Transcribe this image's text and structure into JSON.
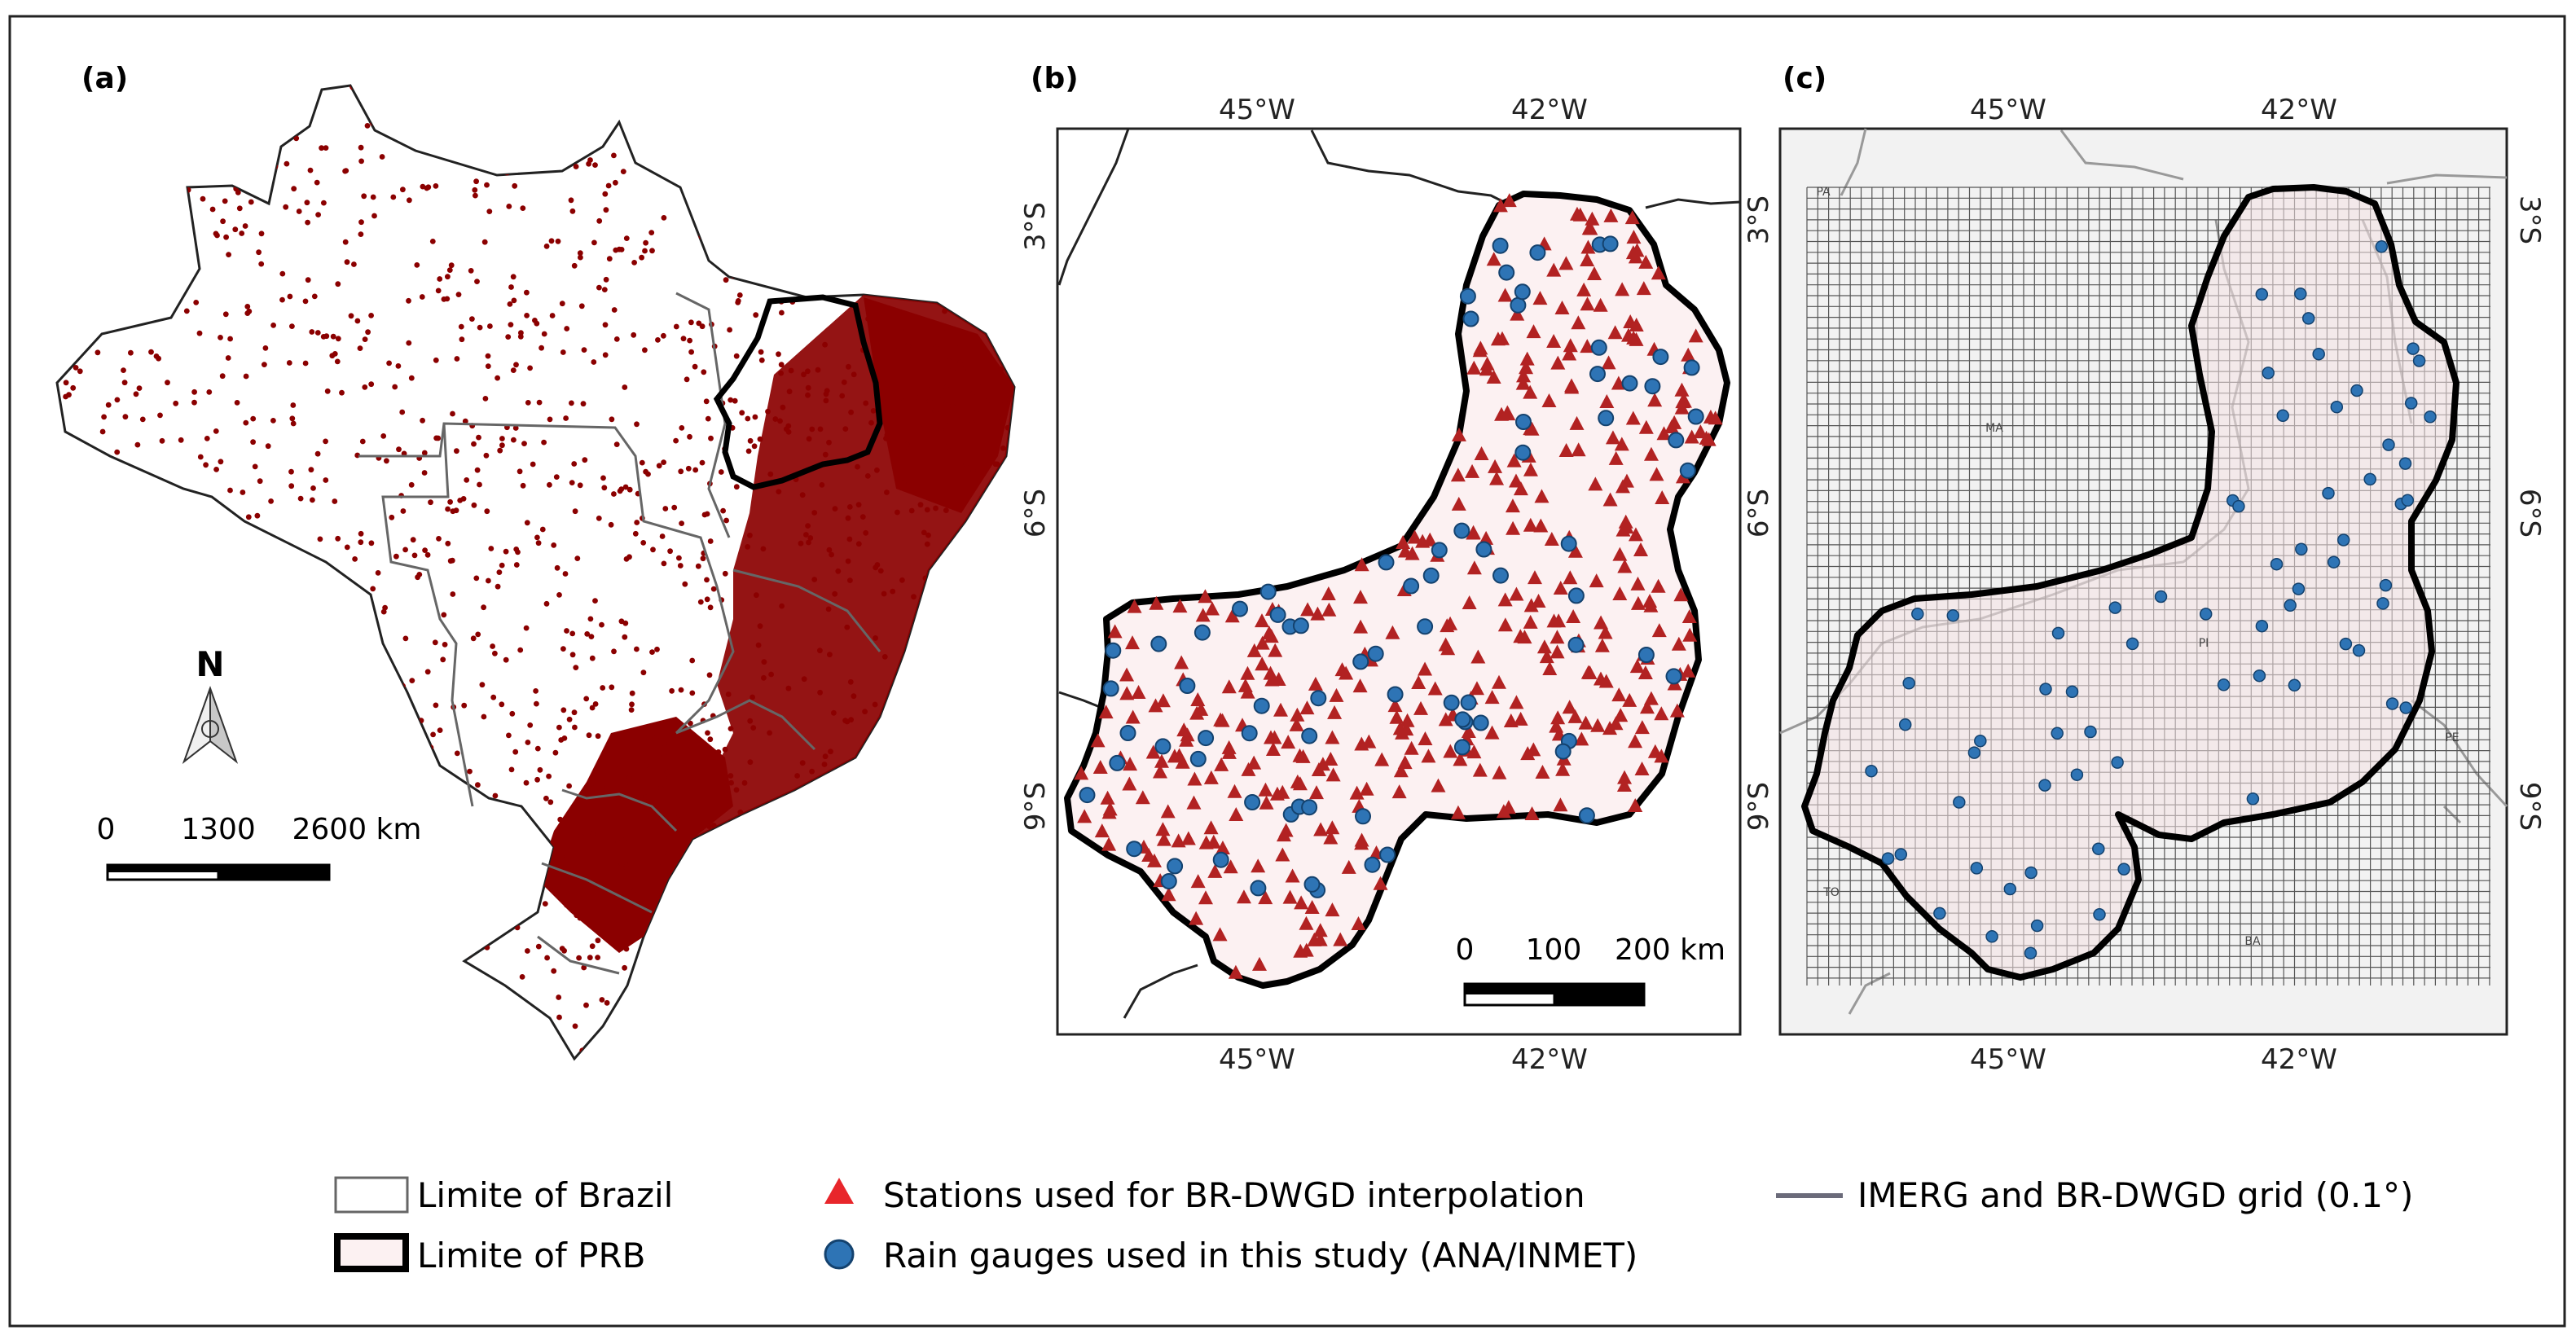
{
  "panels": {
    "a": {
      "label": "(a)",
      "north": "N",
      "scale": {
        "s0": "0",
        "s1": "1300",
        "s2": "2600 km"
      }
    },
    "b": {
      "label": "(b)",
      "lon_top": [
        "45°W",
        "42°W"
      ],
      "lon_bottom": [
        "45°W",
        "42°W"
      ],
      "lat_left": [
        "3°S",
        "6°S",
        "9°S"
      ],
      "scale": {
        "s0": "0",
        "s1": "100",
        "s2": "200 km"
      }
    },
    "c": {
      "label": "(c)",
      "lon_top": [
        "45°W",
        "42°W"
      ],
      "lon_bottom": [
        "45°W",
        "42°W"
      ],
      "lat_left": [
        "3°S",
        "6°S",
        "9°S"
      ],
      "lat_right": [
        "3°S",
        "6°S",
        "9°S"
      ],
      "states": [
        "PA",
        "MA",
        "PI",
        "PE",
        "TO",
        "BA"
      ]
    }
  },
  "legend": {
    "brazil": "Limite of Brazil",
    "prb": "Limite of PRB",
    "stations": "Stations used for BR-DWGD interpolation",
    "gauges": "Rain gauges used in this study (ANA/INMET)",
    "grid": "IMERG and BR-DWGD grid (0.1°)"
  },
  "colors": {
    "station": "#b22222",
    "station_legend": "#e8262b",
    "gauge": "#2e74b5",
    "brazil_dots": "#8b0000",
    "prb_fill": "#fcf1f2",
    "grid_line": "#555555",
    "border": "#222222"
  }
}
